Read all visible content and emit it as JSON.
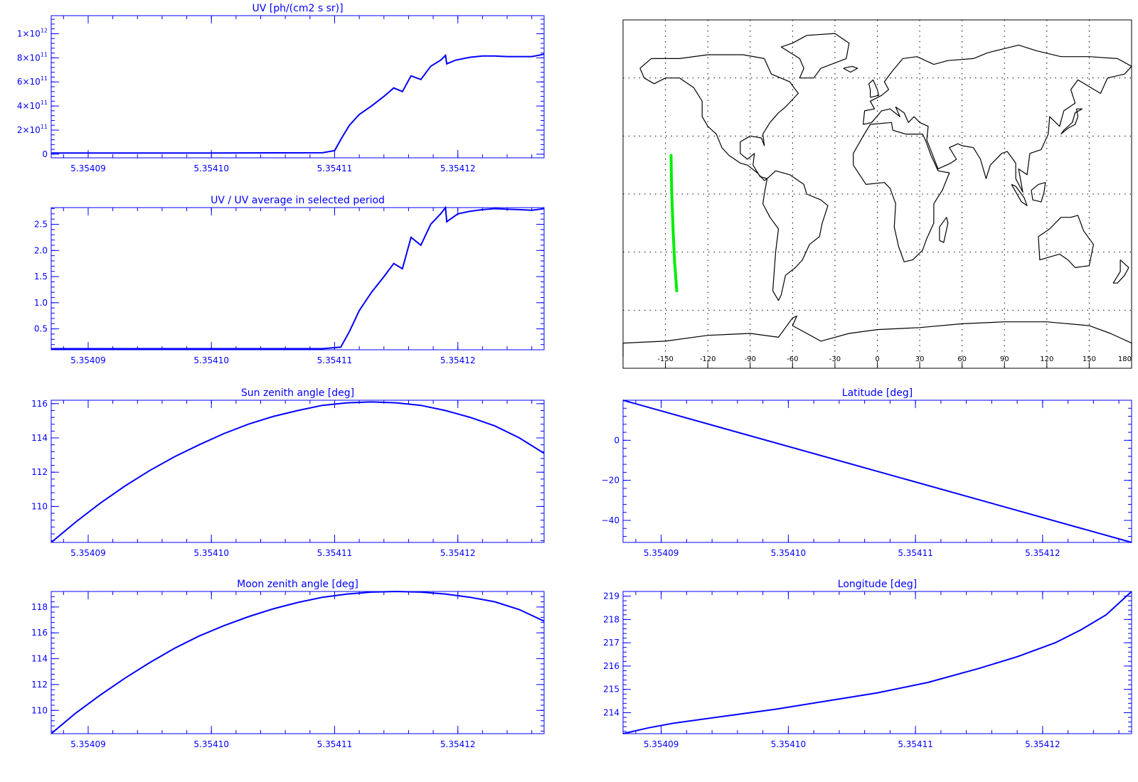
{
  "chart_data": [
    {
      "id": "uv",
      "type": "line",
      "title": "UV [ph/(cm2 s sr)]",
      "xlim": [
        5.354087,
        5.354127
      ],
      "ylim": [
        -30000000000.0,
        1150000000000.0
      ],
      "xticks": [
        5.35409,
        5.3541,
        5.35411,
        5.35412
      ],
      "xtick_labels": [
        "5.35409",
        "5.35410",
        "5.35411",
        "5.35412"
      ],
      "yticks": [
        0,
        200000000000.0,
        400000000000.0,
        600000000000.0,
        800000000000.0,
        1000000000000.0
      ],
      "ytick_labels": [
        {
          "m": "0",
          "e": ""
        },
        {
          "m": "2×10",
          "e": "11"
        },
        {
          "m": "4×10",
          "e": "11"
        },
        {
          "m": "6×10",
          "e": "11"
        },
        {
          "m": "8×10",
          "e": "11"
        },
        {
          "m": "1×10",
          "e": "12"
        }
      ],
      "color": "#0000ff",
      "x": [
        5.354087,
        5.3541,
        5.354109,
        5.35411,
        5.3541106,
        5.3541112,
        5.354112,
        5.354113,
        5.354114,
        5.3541148,
        5.3541155,
        5.3541162,
        5.354117,
        5.3541178,
        5.3541186,
        5.354119,
        5.3541191,
        5.3541198,
        5.354121,
        5.354122,
        5.354123,
        5.354124,
        5.354125,
        5.354126,
        5.354127
      ],
      "y": [
        10000000000.0,
        10000000000.0,
        12000000000.0,
        30000000000.0,
        140000000000.0,
        240000000000.0,
        330000000000.0,
        400000000000.0,
        480000000000.0,
        550000000000.0,
        520000000000.0,
        650000000000.0,
        620000000000.0,
        730000000000.0,
        780000000000.0,
        820000000000.0,
        750000000000.0,
        780000000000.0,
        805000000000.0,
        815000000000.0,
        815000000000.0,
        810000000000.0,
        810000000000.0,
        810000000000.0,
        830000000000.0
      ]
    },
    {
      "id": "uv_ratio",
      "type": "line",
      "title": "UV / UV average in selected period",
      "xlim": [
        5.354087,
        5.354127
      ],
      "ylim": [
        0.1,
        2.82
      ],
      "xticks": [
        5.35409,
        5.3541,
        5.35411,
        5.35412
      ],
      "xtick_labels": [
        "5.35409",
        "5.35410",
        "5.35411",
        "5.35412"
      ],
      "yticks": [
        0.5,
        1.0,
        1.5,
        2.0,
        2.5
      ],
      "ytick_labels": [
        "0.5",
        "1.0",
        "1.5",
        "2.0",
        "2.5"
      ],
      "color": "#0000ff",
      "x": [
        5.354087,
        5.3541,
        5.354109,
        5.3541105,
        5.3541112,
        5.354112,
        5.354113,
        5.354114,
        5.3541148,
        5.3541155,
        5.3541162,
        5.354117,
        5.3541178,
        5.3541186,
        5.354119,
        5.3541191,
        5.35412,
        5.354121,
        5.354122,
        5.354123,
        5.354124,
        5.354125,
        5.354126,
        5.354127
      ],
      "y": [
        0.12,
        0.12,
        0.12,
        0.15,
        0.45,
        0.85,
        1.2,
        1.5,
        1.75,
        1.65,
        2.25,
        2.1,
        2.5,
        2.7,
        2.82,
        2.55,
        2.7,
        2.75,
        2.78,
        2.8,
        2.79,
        2.78,
        2.77,
        2.8
      ]
    },
    {
      "id": "map",
      "type": "map",
      "xlim": [
        -180,
        180
      ],
      "ylim": [
        -90,
        90
      ],
      "xticks": [
        -150,
        -120,
        -90,
        -60,
        -30,
        0,
        30,
        60,
        90,
        120,
        150,
        180
      ],
      "xtick_labels": [
        "-150",
        "-120",
        "-90",
        "-60",
        "-30",
        "0",
        "30",
        "60",
        "90",
        "120",
        "150",
        "180"
      ],
      "grid_lon": [
        -150,
        -120,
        -90,
        -60,
        -30,
        0,
        30,
        60,
        90,
        120,
        150
      ],
      "grid_lat": [
        -60,
        -30,
        0,
        30,
        60
      ],
      "coast_color": "#000000",
      "track_color": "#00ee00",
      "track": {
        "lon": [
          -146,
          -145.8,
          -145.5,
          -145,
          -144.5,
          -143.5,
          -142
        ],
        "lat": [
          20,
          10,
          0,
          -10,
          -20,
          -35,
          -50
        ]
      }
    },
    {
      "id": "sza",
      "type": "line",
      "title": "Sun zenith angle [deg]",
      "xlim": [
        5.354087,
        5.354127
      ],
      "ylim": [
        107.9,
        116.2
      ],
      "xticks": [
        5.35409,
        5.3541,
        5.35411,
        5.35412
      ],
      "xtick_labels": [
        "5.35409",
        "5.35410",
        "5.35411",
        "5.35412"
      ],
      "yticks": [
        110,
        112,
        114,
        116
      ],
      "ytick_labels": [
        "110",
        "112",
        "114",
        "116"
      ],
      "color": "#0000ff",
      "x": [
        5.354087,
        5.354089,
        5.354091,
        5.354093,
        5.354095,
        5.354097,
        5.354099,
        5.354101,
        5.354103,
        5.354105,
        5.354107,
        5.354109,
        5.354111,
        5.354113,
        5.354115,
        5.354117,
        5.354119,
        5.354121,
        5.354123,
        5.354125,
        5.354127
      ],
      "y": [
        107.9,
        109.1,
        110.2,
        111.2,
        112.1,
        112.9,
        113.6,
        114.25,
        114.8,
        115.25,
        115.6,
        115.9,
        116.05,
        116.1,
        116.05,
        115.9,
        115.6,
        115.2,
        114.7,
        114.0,
        113.1
      ]
    },
    {
      "id": "lat",
      "type": "line",
      "title": "Latitude [deg]",
      "xlim": [
        5.354087,
        5.354127
      ],
      "ylim": [
        -51,
        20
      ],
      "xticks": [
        5.35409,
        5.3541,
        5.35411,
        5.35412
      ],
      "xtick_labels": [
        "5.35409",
        "5.35410",
        "5.35411",
        "5.35412"
      ],
      "yticks": [
        -40,
        -20,
        0
      ],
      "ytick_labels": [
        "−40",
        "−20",
        "0"
      ],
      "color": "#0000ff",
      "x": [
        5.354087,
        5.354127
      ],
      "y": [
        20,
        -51
      ]
    },
    {
      "id": "mza",
      "type": "line",
      "title": "Moon zenith angle [deg]",
      "xlim": [
        5.354087,
        5.354127
      ],
      "ylim": [
        108.2,
        119.2
      ],
      "xticks": [
        5.35409,
        5.3541,
        5.35411,
        5.35412
      ],
      "xtick_labels": [
        "5.35409",
        "5.35410",
        "5.35411",
        "5.35412"
      ],
      "yticks": [
        110,
        112,
        114,
        116,
        118
      ],
      "ytick_labels": [
        "110",
        "112",
        "114",
        "116",
        "118"
      ],
      "color": "#0000ff",
      "x": [
        5.354087,
        5.354089,
        5.354091,
        5.354093,
        5.354095,
        5.354097,
        5.354099,
        5.354101,
        5.354103,
        5.354105,
        5.354107,
        5.354109,
        5.354111,
        5.354113,
        5.354115,
        5.354117,
        5.354119,
        5.354121,
        5.354123,
        5.354125,
        5.354127
      ],
      "y": [
        108.2,
        109.8,
        111.2,
        112.5,
        113.7,
        114.8,
        115.75,
        116.55,
        117.25,
        117.85,
        118.35,
        118.75,
        119.0,
        119.15,
        119.2,
        119.15,
        119.0,
        118.75,
        118.4,
        117.8,
        116.9
      ]
    },
    {
      "id": "lon",
      "type": "line",
      "title": "Longitude [deg]",
      "xlim": [
        5.354087,
        5.354127
      ],
      "ylim": [
        213.1,
        219.2
      ],
      "xticks": [
        5.35409,
        5.3541,
        5.35411,
        5.35412
      ],
      "xtick_labels": [
        "5.35409",
        "5.35410",
        "5.35411",
        "5.35412"
      ],
      "yticks": [
        214,
        215,
        216,
        217,
        218,
        219
      ],
      "ytick_labels": [
        "214",
        "215",
        "216",
        "217",
        "218",
        "219"
      ],
      "color": "#0000ff",
      "x": [
        5.354087,
        5.354089,
        5.354091,
        5.354095,
        5.354099,
        5.354103,
        5.354107,
        5.354111,
        5.354115,
        5.354118,
        5.354121,
        5.354123,
        5.354125,
        5.354127
      ],
      "y": [
        213.1,
        213.35,
        213.55,
        213.85,
        214.15,
        214.5,
        214.85,
        215.3,
        215.9,
        216.4,
        217.0,
        217.55,
        218.2,
        219.2
      ]
    }
  ]
}
